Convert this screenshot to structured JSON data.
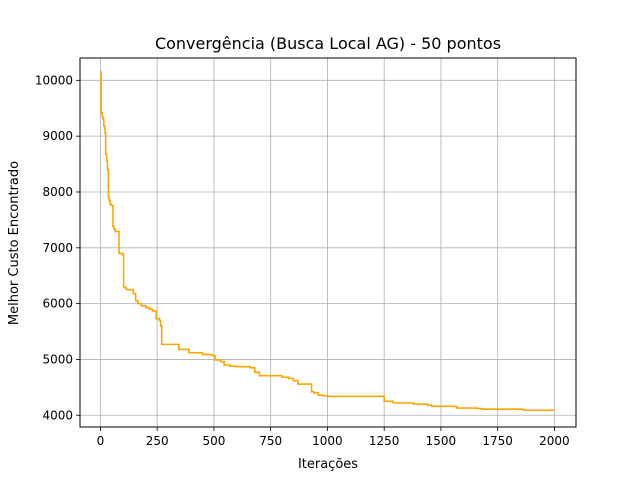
{
  "chart_data": {
    "type": "line",
    "title": "Convergência (Busca Local AG) - 50 pontos",
    "xlabel": "Iterações",
    "ylabel": "Melhor Custo Encontrado",
    "xlim": [
      -90,
      2095
    ],
    "ylim": [
      3790,
      10400
    ],
    "xticks": [
      0,
      250,
      500,
      750,
      1000,
      1250,
      1500,
      1750,
      2000
    ],
    "yticks": [
      4000,
      5000,
      6000,
      7000,
      8000,
      9000,
      10000
    ],
    "grid": true,
    "line_color": "#ffa500",
    "series": [
      {
        "step": true,
        "points": [
          [
            0,
            10150
          ],
          [
            3,
            9420
          ],
          [
            8,
            9350
          ],
          [
            12,
            9300
          ],
          [
            15,
            9180
          ],
          [
            20,
            9060
          ],
          [
            23,
            8680
          ],
          [
            27,
            8560
          ],
          [
            31,
            8400
          ],
          [
            35,
            7900
          ],
          [
            38,
            7850
          ],
          [
            42,
            7780
          ],
          [
            47,
            7760
          ],
          [
            55,
            7380
          ],
          [
            60,
            7330
          ],
          [
            65,
            7290
          ],
          [
            82,
            6900
          ],
          [
            100,
            6870
          ],
          [
            102,
            6300
          ],
          [
            110,
            6280
          ],
          [
            115,
            6250
          ],
          [
            145,
            6180
          ],
          [
            155,
            6050
          ],
          [
            165,
            6000
          ],
          [
            180,
            5960
          ],
          [
            200,
            5930
          ],
          [
            215,
            5900
          ],
          [
            230,
            5870
          ],
          [
            245,
            5730
          ],
          [
            260,
            5700
          ],
          [
            265,
            5600
          ],
          [
            270,
            5270
          ],
          [
            345,
            5180
          ],
          [
            390,
            5120
          ],
          [
            450,
            5090
          ],
          [
            490,
            5070
          ],
          [
            505,
            4990
          ],
          [
            530,
            4960
          ],
          [
            545,
            4900
          ],
          [
            570,
            4880
          ],
          [
            600,
            4870
          ],
          [
            660,
            4850
          ],
          [
            680,
            4770
          ],
          [
            700,
            4710
          ],
          [
            800,
            4680
          ],
          [
            830,
            4660
          ],
          [
            850,
            4620
          ],
          [
            870,
            4560
          ],
          [
            930,
            4420
          ],
          [
            940,
            4400
          ],
          [
            960,
            4360
          ],
          [
            980,
            4350
          ],
          [
            1000,
            4340
          ],
          [
            1240,
            4340
          ],
          [
            1250,
            4250
          ],
          [
            1290,
            4220
          ],
          [
            1380,
            4200
          ],
          [
            1440,
            4180
          ],
          [
            1460,
            4160
          ],
          [
            1570,
            4130
          ],
          [
            1660,
            4120
          ],
          [
            1680,
            4110
          ],
          [
            1860,
            4100
          ],
          [
            1870,
            4090
          ],
          [
            2000,
            4090
          ]
        ]
      }
    ]
  }
}
